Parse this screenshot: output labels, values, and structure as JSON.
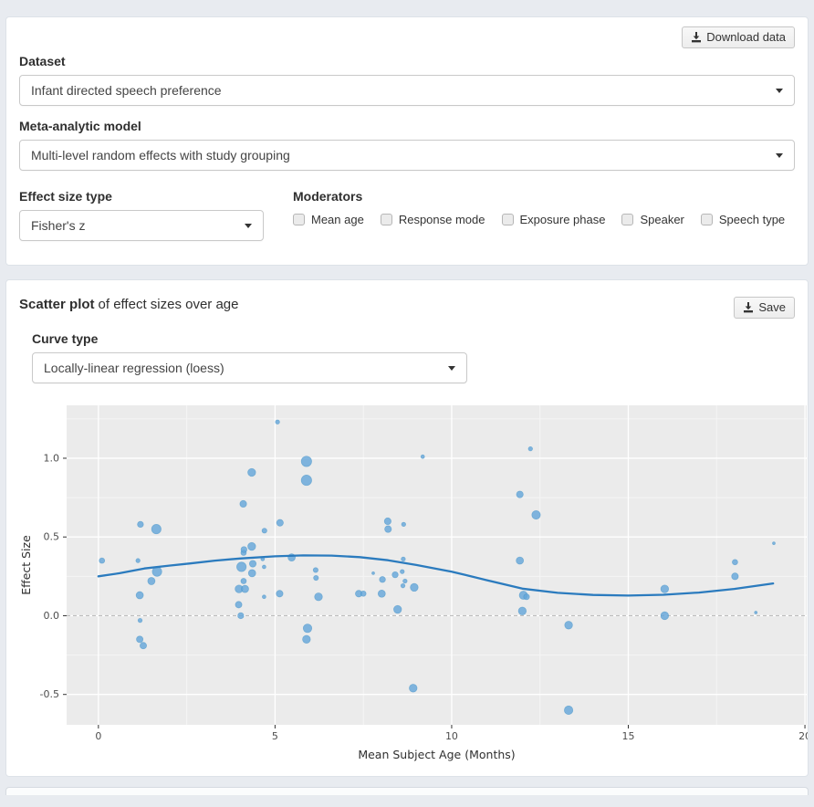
{
  "controls_panel": {
    "download_button_label": "Download data",
    "dataset_label": "Dataset",
    "dataset_value": "Infant directed speech preference",
    "model_label": "Meta-analytic model",
    "model_value": "Multi-level random effects with study grouping",
    "effect_size_label": "Effect size type",
    "effect_size_value": "Fisher's z",
    "moderators_label": "Moderators",
    "moderators": [
      "Mean age",
      "Response mode",
      "Exposure phase",
      "Speaker",
      "Speech type"
    ]
  },
  "scatter_panel": {
    "title_bold": "Scatter plot",
    "title_rest": "of effect sizes over age",
    "save_button_label": "Save",
    "curve_type_label": "Curve type",
    "curve_type_value": "Locally-linear regression (loess)"
  },
  "chart_data": {
    "type": "scatter",
    "title": "",
    "xlabel": "Mean Subject Age (Months)",
    "ylabel": "Effect Size",
    "xticks": [
      0,
      5,
      10,
      15,
      20
    ],
    "yticks": [
      -0.5,
      0.0,
      0.5,
      1.0
    ],
    "xlim": [
      -0.9,
      20.05
    ],
    "ylim": [
      -0.693,
      1.336
    ],
    "grid": true,
    "legend": "none",
    "zero_line_y": 0,
    "panel_bg": "#ebebeb",
    "grid_major_color": "#ffffff",
    "grid_minor_color": "#f5f5f5",
    "zero_line_color": "#bdbdbd",
    "point_fill": "#63a5da",
    "point_stroke": "#4292c6",
    "loess_color": "#2b7bbe",
    "points": [
      [
        0.1,
        0.35,
        3.0
      ],
      [
        1.12,
        0.35,
        2.3
      ],
      [
        1.19,
        0.58,
        3.3
      ],
      [
        1.17,
        0.13,
        4.0
      ],
      [
        1.18,
        -0.03,
        2.3
      ],
      [
        1.17,
        -0.15,
        3.6
      ],
      [
        1.27,
        -0.19,
        3.6
      ],
      [
        1.5,
        0.22,
        4.0
      ],
      [
        1.64,
        0.55,
        5.2
      ],
      [
        1.66,
        0.28,
        5.2
      ],
      [
        3.97,
        0.07,
        3.6
      ],
      [
        3.98,
        0.17,
        4.3
      ],
      [
        4.03,
        0.0,
        3.3
      ],
      [
        4.05,
        0.31,
        5.2
      ],
      [
        4.1,
        0.71,
        3.7
      ],
      [
        4.11,
        0.4,
        3.0
      ],
      [
        4.11,
        0.22,
        3.0
      ],
      [
        4.12,
        0.42,
        3.3
      ],
      [
        4.15,
        0.17,
        4.0
      ],
      [
        4.34,
        0.91,
        4.3
      ],
      [
        4.34,
        0.44,
        4.3
      ],
      [
        4.35,
        0.27,
        4.0
      ],
      [
        4.37,
        0.33,
        3.7
      ],
      [
        4.65,
        0.36,
        2.0
      ],
      [
        4.69,
        0.31,
        2.0
      ],
      [
        4.69,
        0.12,
        2.0
      ],
      [
        4.7,
        0.54,
        2.7
      ],
      [
        5.07,
        1.23,
        2.3
      ],
      [
        5.13,
        0.14,
        3.7
      ],
      [
        5.14,
        0.59,
        3.7
      ],
      [
        5.47,
        0.37,
        4.0
      ],
      [
        5.89,
        0.98,
        5.7
      ],
      [
        5.89,
        0.86,
        5.7
      ],
      [
        5.89,
        -0.15,
        4.3
      ],
      [
        5.92,
        -0.08,
        4.7
      ],
      [
        6.15,
        0.29,
        2.7
      ],
      [
        6.16,
        0.24,
        2.7
      ],
      [
        6.23,
        0.12,
        4.3
      ],
      [
        7.37,
        0.14,
        3.7
      ],
      [
        7.5,
        0.14,
        3.0
      ],
      [
        7.78,
        0.27,
        1.5
      ],
      [
        8.02,
        0.14,
        4.0
      ],
      [
        8.04,
        0.23,
        3.3
      ],
      [
        8.19,
        0.6,
        3.7
      ],
      [
        8.2,
        0.55,
        3.7
      ],
      [
        8.4,
        0.26,
        3.3
      ],
      [
        8.47,
        0.04,
        4.3
      ],
      [
        8.6,
        0.28,
        2.3
      ],
      [
        8.62,
        0.19,
        2.3
      ],
      [
        8.63,
        0.36,
        2.3
      ],
      [
        8.64,
        0.58,
        2.3
      ],
      [
        8.68,
        0.22,
        2.3
      ],
      [
        8.91,
        -0.46,
        4.3
      ],
      [
        8.94,
        0.18,
        4.3
      ],
      [
        9.18,
        1.01,
        2.0
      ],
      [
        11.93,
        0.77,
        3.7
      ],
      [
        11.93,
        0.35,
        4.0
      ],
      [
        12.0,
        0.03,
        4.3
      ],
      [
        12.03,
        0.13,
        4.5
      ],
      [
        12.12,
        0.12,
        3.2
      ],
      [
        12.23,
        1.06,
        2.3
      ],
      [
        12.39,
        0.64,
        4.7
      ],
      [
        13.31,
        -0.06,
        4.3
      ],
      [
        13.31,
        -0.6,
        4.7
      ],
      [
        16.03,
        0.17,
        4.3
      ],
      [
        16.03,
        0.0,
        4.3
      ],
      [
        18.02,
        0.34,
        3.0
      ],
      [
        18.02,
        0.25,
        3.7
      ],
      [
        18.61,
        0.02,
        1.5
      ],
      [
        19.12,
        0.46,
        1.5
      ]
    ],
    "loess": [
      [
        0,
        0.25
      ],
      [
        0.6,
        0.27
      ],
      [
        1.3,
        0.3
      ],
      [
        2,
        0.318
      ],
      [
        2.6,
        0.332
      ],
      [
        3.3,
        0.35
      ],
      [
        4,
        0.363
      ],
      [
        5,
        0.377
      ],
      [
        5.8,
        0.383
      ],
      [
        6.6,
        0.382
      ],
      [
        7.4,
        0.372
      ],
      [
        8.2,
        0.352
      ],
      [
        9,
        0.322
      ],
      [
        10,
        0.28
      ],
      [
        11,
        0.225
      ],
      [
        12,
        0.172
      ],
      [
        13,
        0.145
      ],
      [
        14,
        0.132
      ],
      [
        15,
        0.128
      ],
      [
        16,
        0.133
      ],
      [
        17,
        0.147
      ],
      [
        18,
        0.17
      ],
      [
        19.1,
        0.205
      ]
    ]
  }
}
